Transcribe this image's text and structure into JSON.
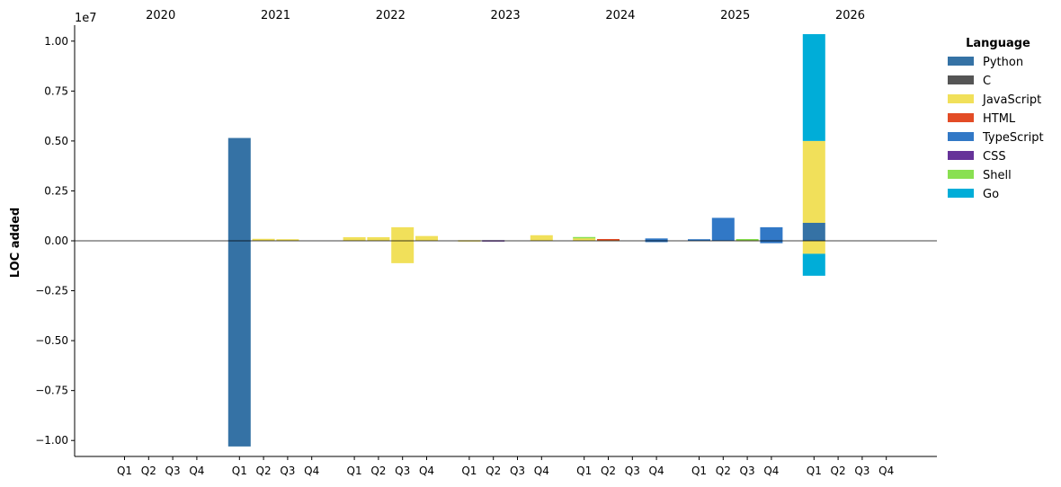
{
  "chart_data": {
    "type": "bar",
    "stacked": true,
    "ylabel": "LOC added",
    "y_offset_label": "1e7",
    "ylim": [
      -1.08,
      1.08
    ],
    "y_unit_multiplier": 10000000,
    "yticks": [
      -1.0,
      -0.75,
      -0.5,
      -0.25,
      0.0,
      0.25,
      0.5,
      0.75,
      1.0
    ],
    "ytick_labels": [
      "−1.00",
      "−0.75",
      "−0.50",
      "−0.25",
      "0.00",
      "0.25",
      "0.50",
      "0.75",
      "1.00"
    ],
    "years": [
      "2020",
      "2021",
      "2022",
      "2023",
      "2024",
      "2025",
      "2026"
    ],
    "quarters": [
      "Q1",
      "Q2",
      "Q3",
      "Q4"
    ],
    "zero_line": true,
    "legend": {
      "title": "Language",
      "placement": "top-right outside"
    },
    "series": [
      {
        "name": "Python",
        "color": "#3572A5"
      },
      {
        "name": "C",
        "color": "#555555"
      },
      {
        "name": "JavaScript",
        "color": "#F1E05A"
      },
      {
        "name": "HTML",
        "color": "#E34C26"
      },
      {
        "name": "TypeScript",
        "color": "#3178C6"
      },
      {
        "name": "CSS",
        "color": "#663399"
      },
      {
        "name": "Shell",
        "color": "#89E051"
      },
      {
        "name": "Go",
        "color": "#00ADD8"
      }
    ],
    "bars": [
      {
        "year": "2021",
        "quarter": "Q1",
        "segments": [
          {
            "series": "Python",
            "value": 0.515
          },
          {
            "series": "Python",
            "value": -1.03
          }
        ]
      },
      {
        "year": "2021",
        "quarter": "Q2",
        "segments": [
          {
            "series": "JavaScript",
            "value": 0.01
          }
        ]
      },
      {
        "year": "2021",
        "quarter": "Q3",
        "segments": [
          {
            "series": "JavaScript",
            "value": 0.008
          }
        ]
      },
      {
        "year": "2022",
        "quarter": "Q1",
        "segments": [
          {
            "series": "JavaScript",
            "value": 0.018
          }
        ]
      },
      {
        "year": "2022",
        "quarter": "Q2",
        "segments": [
          {
            "series": "JavaScript",
            "value": 0.018
          }
        ]
      },
      {
        "year": "2022",
        "quarter": "Q3",
        "segments": [
          {
            "series": "JavaScript",
            "value": 0.068
          },
          {
            "series": "JavaScript",
            "value": -0.112
          }
        ]
      },
      {
        "year": "2022",
        "quarter": "Q4",
        "segments": [
          {
            "series": "JavaScript",
            "value": 0.024
          }
        ]
      },
      {
        "year": "2023",
        "quarter": "Q1",
        "segments": [
          {
            "series": "JavaScript",
            "value": 0.003
          }
        ]
      },
      {
        "year": "2023",
        "quarter": "Q2",
        "segments": [
          {
            "series": "CSS",
            "value": 0.003
          }
        ]
      },
      {
        "year": "2023",
        "quarter": "Q4",
        "segments": [
          {
            "series": "JavaScript",
            "value": 0.028
          }
        ]
      },
      {
        "year": "2024",
        "quarter": "Q1",
        "segments": [
          {
            "series": "JavaScript",
            "value": 0.015
          },
          {
            "series": "Shell",
            "value": 0.004
          }
        ]
      },
      {
        "year": "2024",
        "quarter": "Q2",
        "segments": [
          {
            "series": "JavaScript",
            "value": 0.006
          },
          {
            "series": "HTML",
            "value": 0.003
          }
        ]
      },
      {
        "year": "2024",
        "quarter": "Q4",
        "segments": [
          {
            "series": "TypeScript",
            "value": 0.012
          },
          {
            "series": "TypeScript",
            "value": -0.006
          }
        ]
      },
      {
        "year": "2025",
        "quarter": "Q1",
        "segments": [
          {
            "series": "TypeScript",
            "value": 0.008
          }
        ]
      },
      {
        "year": "2025",
        "quarter": "Q2",
        "segments": [
          {
            "series": "TypeScript",
            "value": 0.115
          }
        ]
      },
      {
        "year": "2025",
        "quarter": "Q3",
        "segments": [
          {
            "series": "JavaScript",
            "value": 0.005
          },
          {
            "series": "Shell",
            "value": 0.004
          }
        ]
      },
      {
        "year": "2025",
        "quarter": "Q4",
        "segments": [
          {
            "series": "TypeScript",
            "value": 0.068
          },
          {
            "series": "TypeScript",
            "value": -0.012
          }
        ]
      },
      {
        "year": "2026",
        "quarter": "Q1",
        "segments": [
          {
            "series": "Python",
            "value": 0.09
          },
          {
            "series": "JavaScript",
            "value": 0.41
          },
          {
            "series": "Go",
            "value": 0.535
          },
          {
            "series": "JavaScript",
            "value": -0.065
          },
          {
            "series": "Go",
            "value": -0.11
          }
        ]
      }
    ]
  }
}
